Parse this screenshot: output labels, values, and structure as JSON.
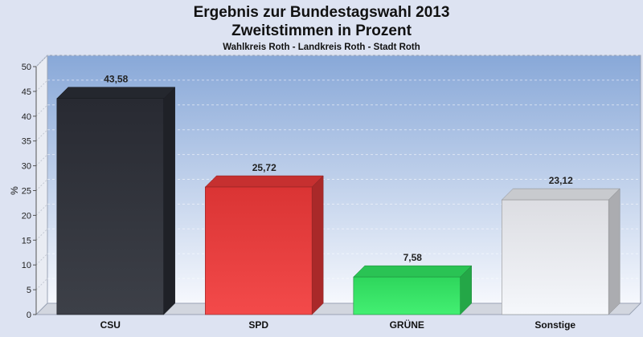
{
  "chart_data": {
    "type": "bar",
    "title": "Ergebnis zur Bundestagswahl 2013",
    "title2": "Zweitstimmen in Prozent",
    "subtitle": "Wahlkreis Roth - Landkreis Roth - Stadt Roth",
    "ylabel": "%",
    "xlabel": "",
    "ylim": [
      0,
      50
    ],
    "yticks": [
      0,
      5,
      10,
      15,
      20,
      25,
      30,
      35,
      40,
      45,
      50
    ],
    "categories": [
      "CSU",
      "SPD",
      "GRÜNE",
      "Sonstige"
    ],
    "values": [
      43.58,
      25.72,
      7.58,
      23.12
    ],
    "value_labels": [
      "43,58",
      "25,72",
      "7,58",
      "23,12"
    ],
    "colors": [
      "#2c2f38",
      "#f23a3a",
      "#33ee66",
      "#f4f6fb"
    ],
    "grid": true,
    "legend": "none",
    "three_d": true
  }
}
